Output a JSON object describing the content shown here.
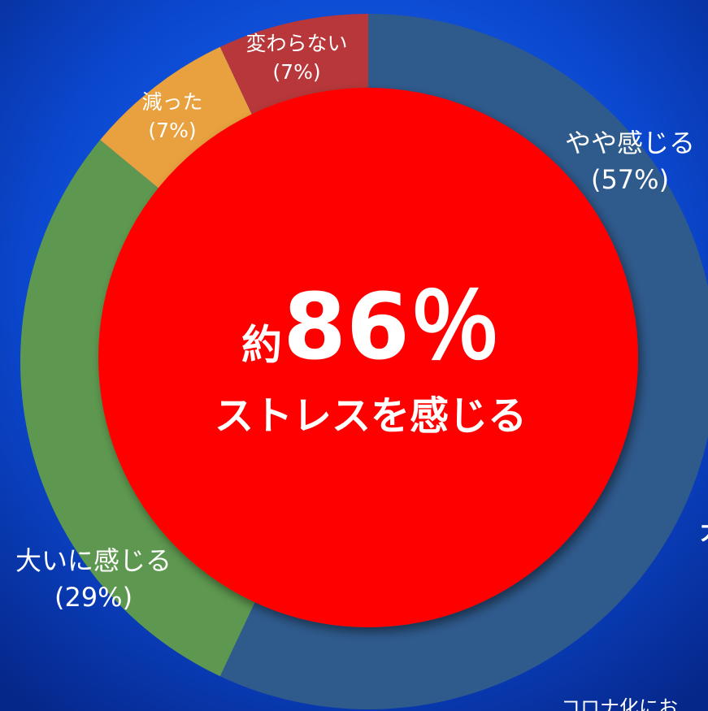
{
  "chart_data": {
    "type": "donut",
    "categories": [
      "やや感じる",
      "大いに感じる",
      "減った",
      "変わらない"
    ],
    "values": [
      57,
      29,
      7,
      7
    ],
    "value_labels": [
      "(57%)",
      "(29%)",
      "(7%)",
      "(7%)"
    ],
    "colors": [
      "#2f5a8c",
      "#5e9850",
      "#e8a13e",
      "#b7373a"
    ],
    "center_color": "#ff0000",
    "center_prefix": "約",
    "center_value": "86％",
    "center_caption": "ストレスを感じる"
  },
  "background_texts": [
    "大",
    "コロナ化にお"
  ]
}
